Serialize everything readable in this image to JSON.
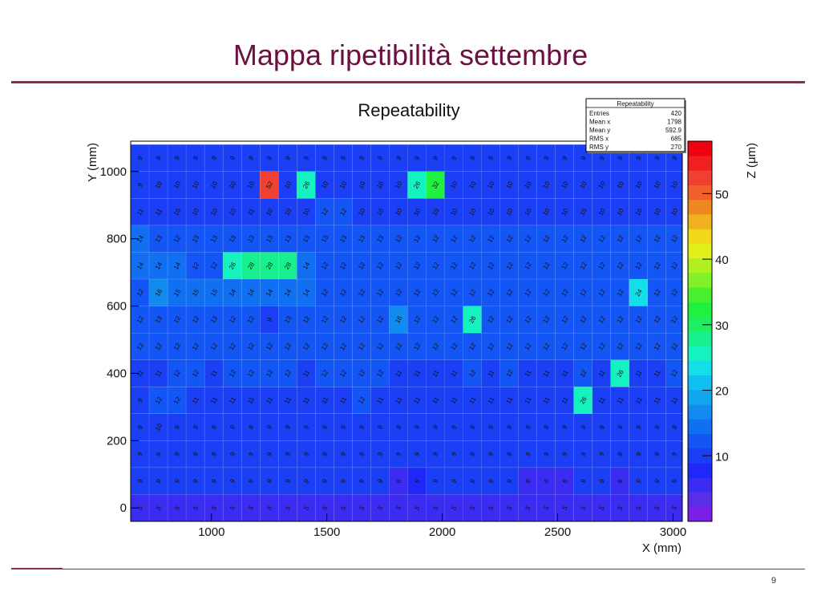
{
  "slide": {
    "title": "Mappa ripetibilità settembre",
    "page_number": "9"
  },
  "chart_data": {
    "type": "heatmap",
    "title": "Repeatability",
    "xlabel": "X (mm)",
    "ylabel": "Y (mm)",
    "zlabel": "Z (μm)",
    "xlim": [
      650,
      3040
    ],
    "ylim": [
      -40,
      1090
    ],
    "x_ticks": [
      1000,
      1500,
      2000,
      2500,
      3000
    ],
    "y_ticks": [
      0,
      200,
      400,
      600,
      800,
      1000
    ],
    "x_centers": [
      690,
      770,
      850,
      930,
      1010,
      1090,
      1170,
      1250,
      1330,
      1410,
      1490,
      1570,
      1650,
      1730,
      1810,
      1890,
      1970,
      2050,
      2130,
      2210,
      2290,
      2370,
      2450,
      2530,
      2610,
      2690,
      2770,
      2850,
      2930,
      3010
    ],
    "y_centers": [
      0,
      80,
      160,
      240,
      320,
      400,
      480,
      560,
      640,
      720,
      800,
      880,
      960,
      1040
    ],
    "z_range": [
      0,
      58
    ],
    "z_ticks": [
      10,
      20,
      30,
      40,
      50
    ],
    "palette": [
      "#7a1fe6",
      "#5a2ee8",
      "#3a2cf0",
      "#1f28fb",
      "#1a3ff5",
      "#1456f5",
      "#1170f2",
      "#118bf0",
      "#10a6f0",
      "#10c0f0",
      "#12dfe6",
      "#14f2c0",
      "#18f090",
      "#1cf060",
      "#20f040",
      "#48f030",
      "#80f028",
      "#b0f020",
      "#e0f018",
      "#f0d818",
      "#f0b020",
      "#f08820",
      "#f06028",
      "#f04030",
      "#f02020",
      "#f00010"
    ],
    "z_values": [
      [
        5,
        5,
        5,
        5,
        5,
        5,
        5,
        5,
        5,
        5,
        5,
        5,
        5,
        5,
        5,
        5,
        5,
        5,
        5,
        5,
        5,
        5,
        5,
        5,
        5,
        5,
        5,
        5,
        5,
        5
      ],
      [
        9,
        9,
        9,
        9,
        9,
        9,
        9,
        9,
        9,
        9,
        9,
        9,
        9,
        9,
        6,
        8,
        9,
        9,
        9,
        9,
        9,
        6,
        6,
        6,
        9,
        9,
        6,
        9,
        9,
        9
      ],
      [
        9,
        9,
        9,
        9,
        9,
        9,
        9,
        9,
        9,
        9,
        9,
        9,
        9,
        9,
        9,
        9,
        9,
        9,
        9,
        9,
        9,
        9,
        9,
        9,
        9,
        9,
        9,
        9,
        9,
        9
      ],
      [
        9,
        10,
        9,
        9,
        9,
        9,
        9,
        9,
        9,
        9,
        9,
        9,
        9,
        9,
        9,
        9,
        9,
        9,
        9,
        9,
        9,
        9,
        9,
        9,
        9,
        9,
        9,
        9,
        9,
        9
      ],
      [
        9,
        12,
        12,
        11,
        11,
        11,
        11,
        11,
        11,
        11,
        11,
        11,
        12,
        11,
        11,
        11,
        11,
        11,
        11,
        11,
        11,
        11,
        11,
        11,
        26,
        11,
        11,
        11,
        11,
        11
      ],
      [
        11,
        11,
        12,
        12,
        11,
        12,
        12,
        12,
        12,
        11,
        12,
        12,
        12,
        12,
        11,
        11,
        11,
        11,
        12,
        11,
        12,
        11,
        11,
        11,
        12,
        11,
        26,
        11,
        11,
        12
      ],
      [
        12,
        12,
        12,
        12,
        12,
        12,
        12,
        12,
        12,
        12,
        12,
        12,
        12,
        12,
        12,
        12,
        12,
        12,
        12,
        12,
        12,
        12,
        12,
        12,
        12,
        12,
        12,
        12,
        12,
        12
      ],
      [
        12,
        13,
        12,
        12,
        13,
        12,
        12,
        9,
        13,
        12,
        12,
        12,
        12,
        12,
        16,
        12,
        12,
        12,
        26,
        12,
        12,
        12,
        12,
        12,
        12,
        12,
        12,
        12,
        12,
        12
      ],
      [
        12,
        16,
        15,
        15,
        15,
        14,
        14,
        14,
        14,
        14,
        12,
        12,
        12,
        12,
        12,
        12,
        12,
        12,
        12,
        12,
        12,
        12,
        12,
        12,
        12,
        12,
        12,
        24,
        12,
        12
      ],
      [
        14,
        14,
        14,
        12,
        12,
        26,
        28,
        28,
        28,
        14,
        12,
        12,
        12,
        12,
        12,
        12,
        12,
        12,
        12,
        12,
        12,
        12,
        12,
        12,
        12,
        12,
        12,
        12,
        12,
        12
      ],
      [
        14,
        13,
        12,
        13,
        13,
        13,
        13,
        13,
        13,
        13,
        13,
        13,
        13,
        13,
        12,
        12,
        12,
        12,
        12,
        12,
        12,
        12,
        12,
        12,
        12,
        12,
        12,
        12,
        12,
        12
      ],
      [
        11,
        11,
        10,
        10,
        10,
        10,
        11,
        10,
        10,
        10,
        12,
        12,
        10,
        10,
        10,
        10,
        10,
        10,
        10,
        10,
        10,
        10,
        10,
        10,
        10,
        10,
        10,
        10,
        10,
        10
      ],
      [
        9,
        10,
        10,
        10,
        10,
        10,
        10,
        52,
        10,
        26,
        10,
        10,
        10,
        10,
        10,
        26,
        32,
        10,
        10,
        10,
        10,
        10,
        10,
        10,
        10,
        10,
        10,
        10,
        10,
        10
      ],
      [
        9,
        9,
        9,
        9,
        9,
        9,
        9,
        9,
        9,
        9,
        9,
        9,
        9,
        9,
        9,
        9,
        9,
        9,
        9,
        9,
        9,
        9,
        9,
        9,
        9,
        9,
        9,
        9,
        9,
        9
      ]
    ],
    "stats_box": {
      "title": "Repeatability",
      "rows": [
        {
          "label": "Entries",
          "value": "420"
        },
        {
          "label": "Mean x",
          "value": "1798"
        },
        {
          "label": "Mean y",
          "value": "592.9"
        },
        {
          "label": "RMS x",
          "value": "685"
        },
        {
          "label": "RMS y",
          "value": "270"
        }
      ]
    }
  }
}
